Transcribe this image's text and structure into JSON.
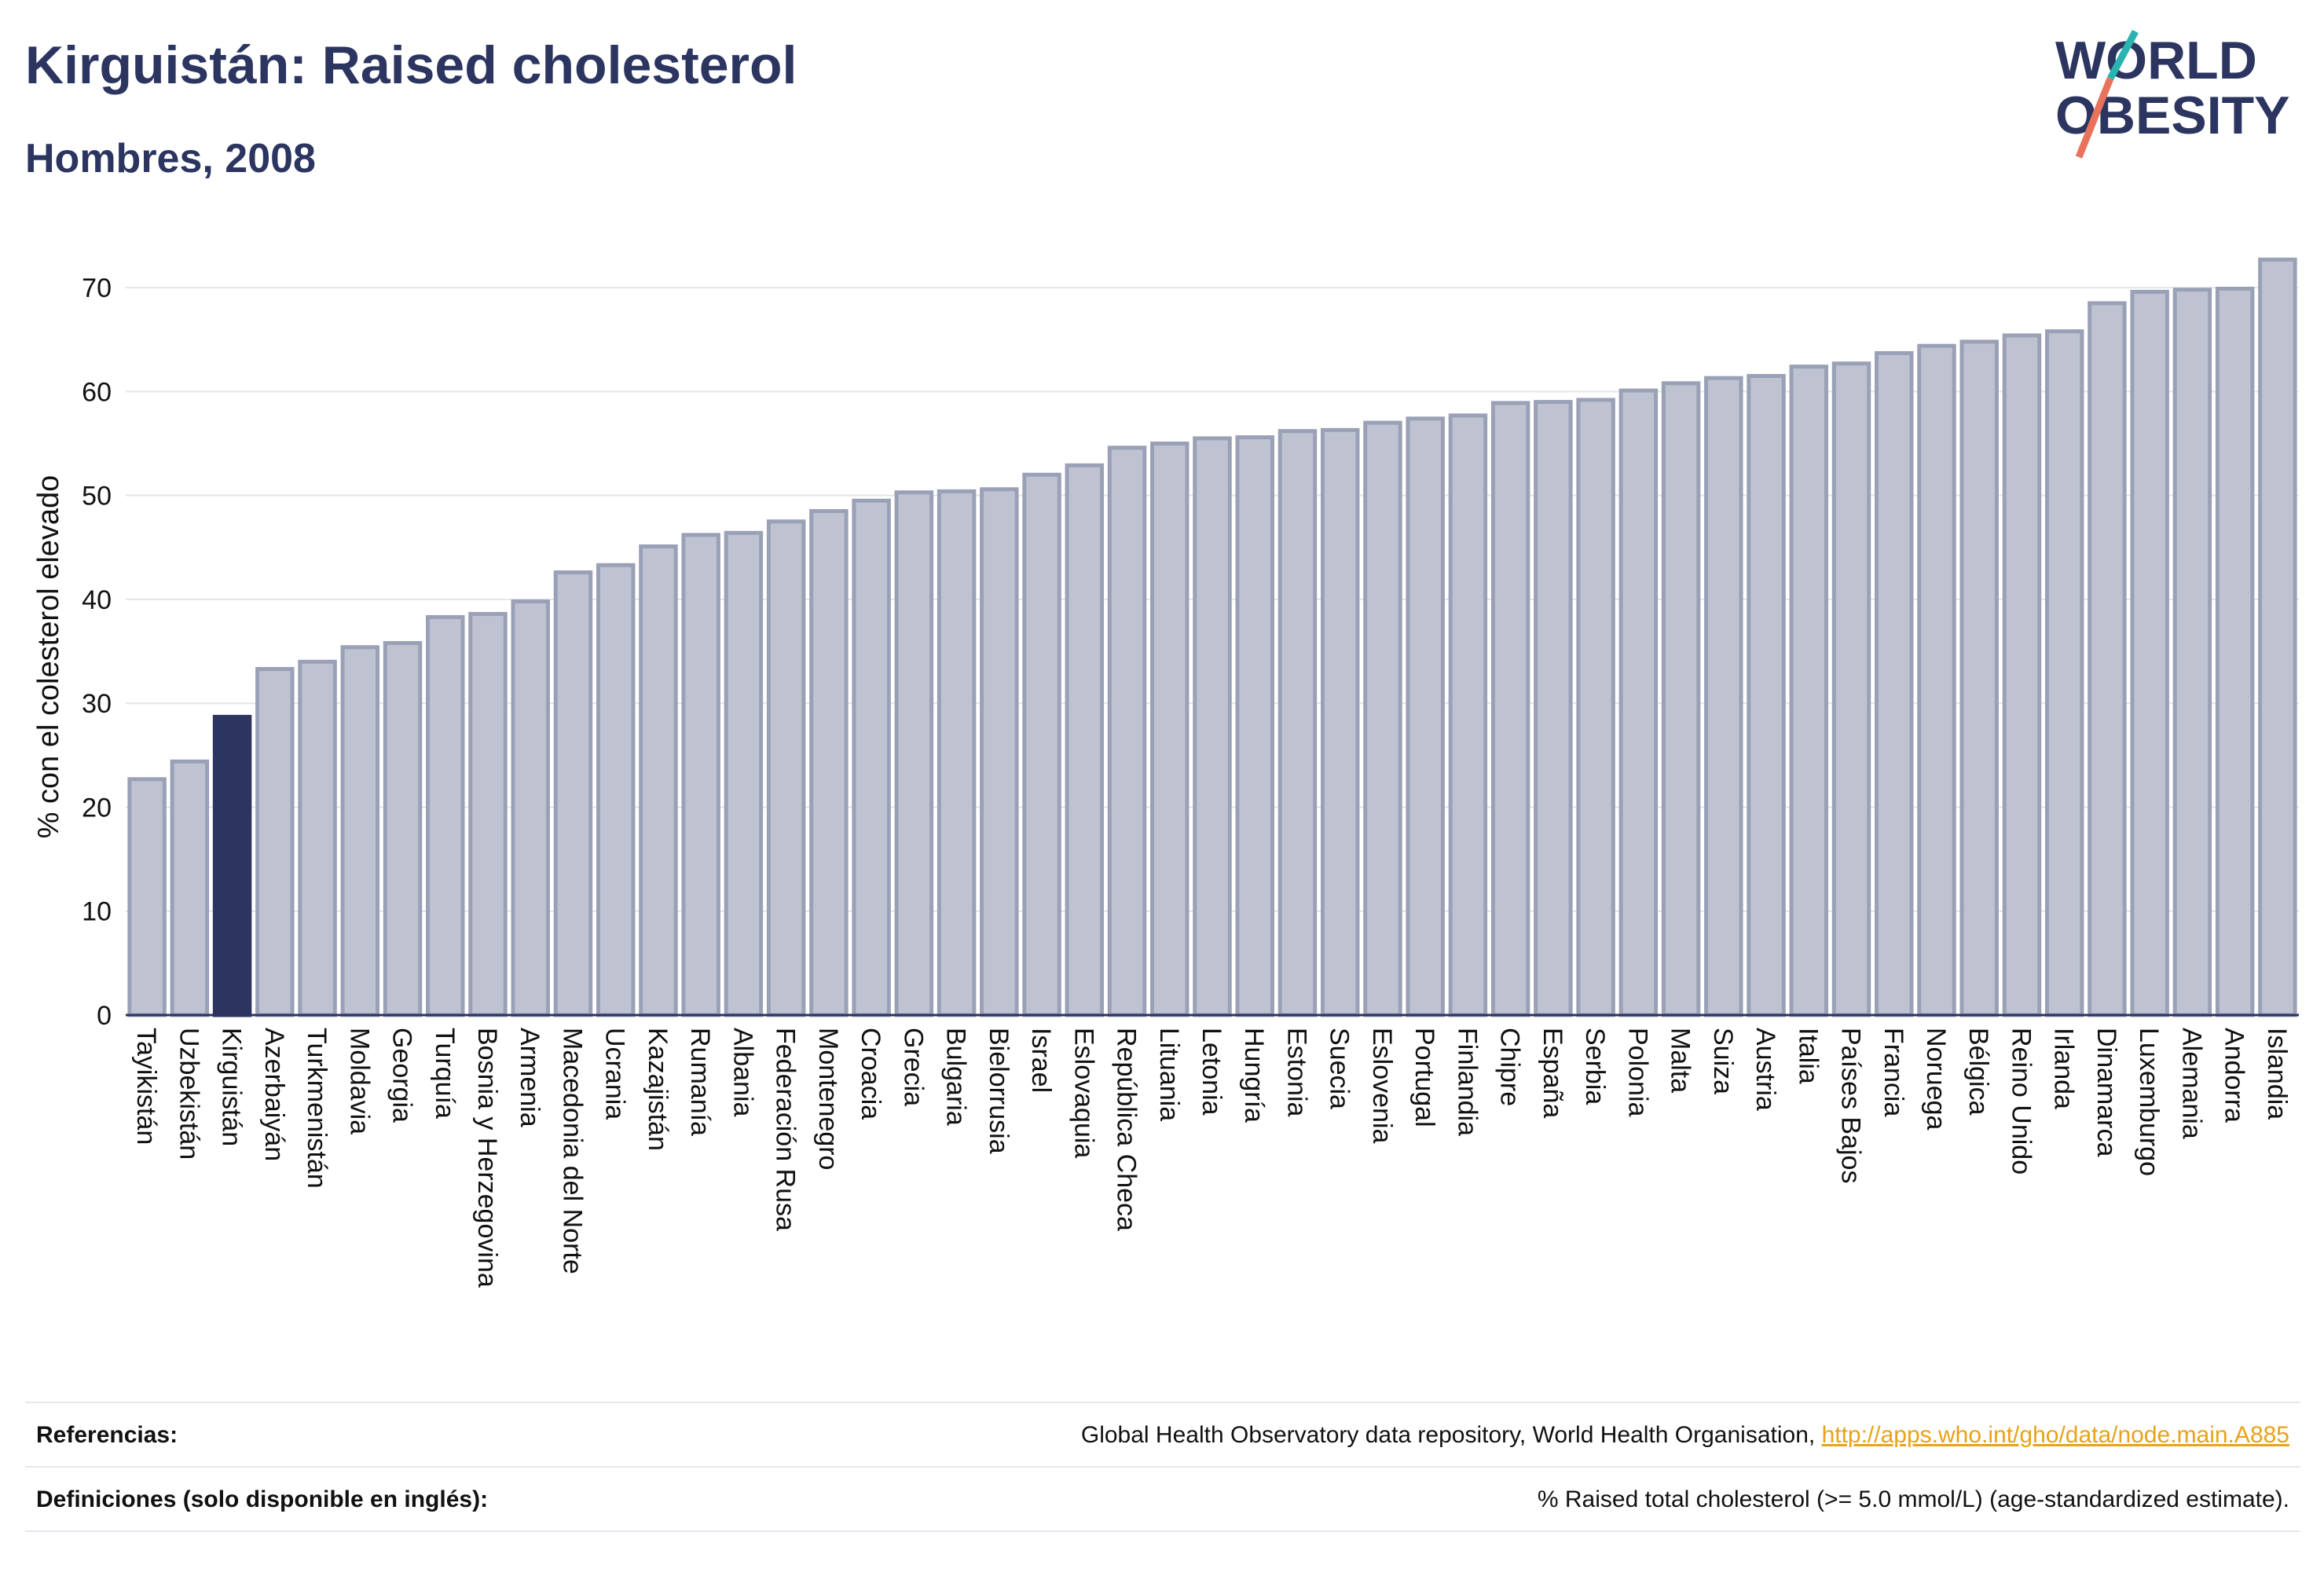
{
  "header": {
    "title": "Kirguistán: Raised cholesterol",
    "subtitle": "Hombres, 2008",
    "logo_line1": "WORLD",
    "logo_line2": "OBESITY"
  },
  "colors": {
    "bar": "#bfc3d1",
    "bar_border": "#9aa0b6",
    "highlight": "#2b3560",
    "logo_slash": "#e8735a",
    "logo_slash2": "#2ab3b1"
  },
  "chart_data": {
    "type": "bar",
    "title": "Kirguistán: Raised cholesterol",
    "subtitle": "Hombres, 2008",
    "ylabel": "% con el colesterol elevado",
    "xlabel": "",
    "ylim": [
      0,
      75
    ],
    "yticks": [
      0,
      10,
      20,
      30,
      40,
      50,
      60,
      70
    ],
    "grid": true,
    "highlight": "Kirguistán",
    "categories": [
      "Tayikistán",
      "Uzbekistán",
      "Kirguistán",
      "Azerbaiyán",
      "Turkmenistán",
      "Moldavia",
      "Georgia",
      "Turquía",
      "Bosnia y Herzegovina",
      "Armenia",
      "Macedonia del Norte",
      "Ucrania",
      "Kazajistán",
      "Rumanía",
      "Albania",
      "Federación Rusa",
      "Montenegro",
      "Croacia",
      "Grecia",
      "Bulgaria",
      "Bielorrusia",
      "Israel",
      "Eslovaquia",
      "República Checa",
      "Lituania",
      "Letonia",
      "Hungría",
      "Estonia",
      "Suecia",
      "Eslovenia",
      "Portugal",
      "Finlandia",
      "Chipre",
      "España",
      "Serbia",
      "Polonia",
      "Malta",
      "Suiza",
      "Austria",
      "Italia",
      "Países Bajos",
      "Francia",
      "Noruega",
      "Bélgica",
      "Reino Unido",
      "Irlanda",
      "Dinamarca",
      "Luxemburgo",
      "Alemania",
      "Andorra",
      "Islandia"
    ],
    "values": [
      22.7,
      24.4,
      28.7,
      33.3,
      34.0,
      35.4,
      35.8,
      38.3,
      38.6,
      39.8,
      42.6,
      43.3,
      45.1,
      46.2,
      46.4,
      47.5,
      48.5,
      49.5,
      50.3,
      50.4,
      50.6,
      52.0,
      52.9,
      54.6,
      55.0,
      55.5,
      55.6,
      56.2,
      56.3,
      57.0,
      57.4,
      57.7,
      58.9,
      59.0,
      59.2,
      60.1,
      60.8,
      61.3,
      61.5,
      62.4,
      62.7,
      63.7,
      64.4,
      64.8,
      65.4,
      65.8,
      68.5,
      69.6,
      69.8,
      69.9,
      72.7
    ]
  },
  "footer": {
    "references_label": "Referencias:",
    "references_text": "Global Health Observatory data repository, World Health Organisation,",
    "references_link": "http://apps.who.int/gho/data/node.main.A885",
    "definitions_label": "Definiciones (solo disponible en inglés):",
    "definitions_text": "% Raised total cholesterol (>= 5.0 mmol/L) (age-standardized estimate)."
  }
}
